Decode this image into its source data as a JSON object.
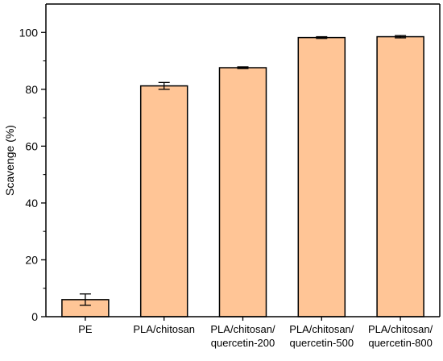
{
  "chart_data": {
    "type": "bar",
    "categories": [
      [
        "PE"
      ],
      [
        "PLA/chitosan"
      ],
      [
        "PLA/chitosan/",
        "quercetin-200"
      ],
      [
        "PLA/chitosan/",
        "quercetin-500"
      ],
      [
        "PLA/chitosan/",
        "quercetin-800"
      ]
    ],
    "values": [
      6,
      81.2,
      87.6,
      98.2,
      98.5
    ],
    "errors": [
      2,
      1.2,
      0.3,
      0.3,
      0.4
    ],
    "xlabel": "",
    "ylabel": "Scavenge (%)",
    "ylim": [
      0,
      110
    ],
    "yticks": [
      0,
      20,
      40,
      60,
      80,
      100
    ],
    "yticks_minor": [
      10,
      30,
      50,
      70,
      90
    ],
    "grid": false,
    "legend": "none",
    "colors": {
      "bar_fill": "#FFC596",
      "bar_stroke": "#000000",
      "axis": "#000000"
    }
  }
}
